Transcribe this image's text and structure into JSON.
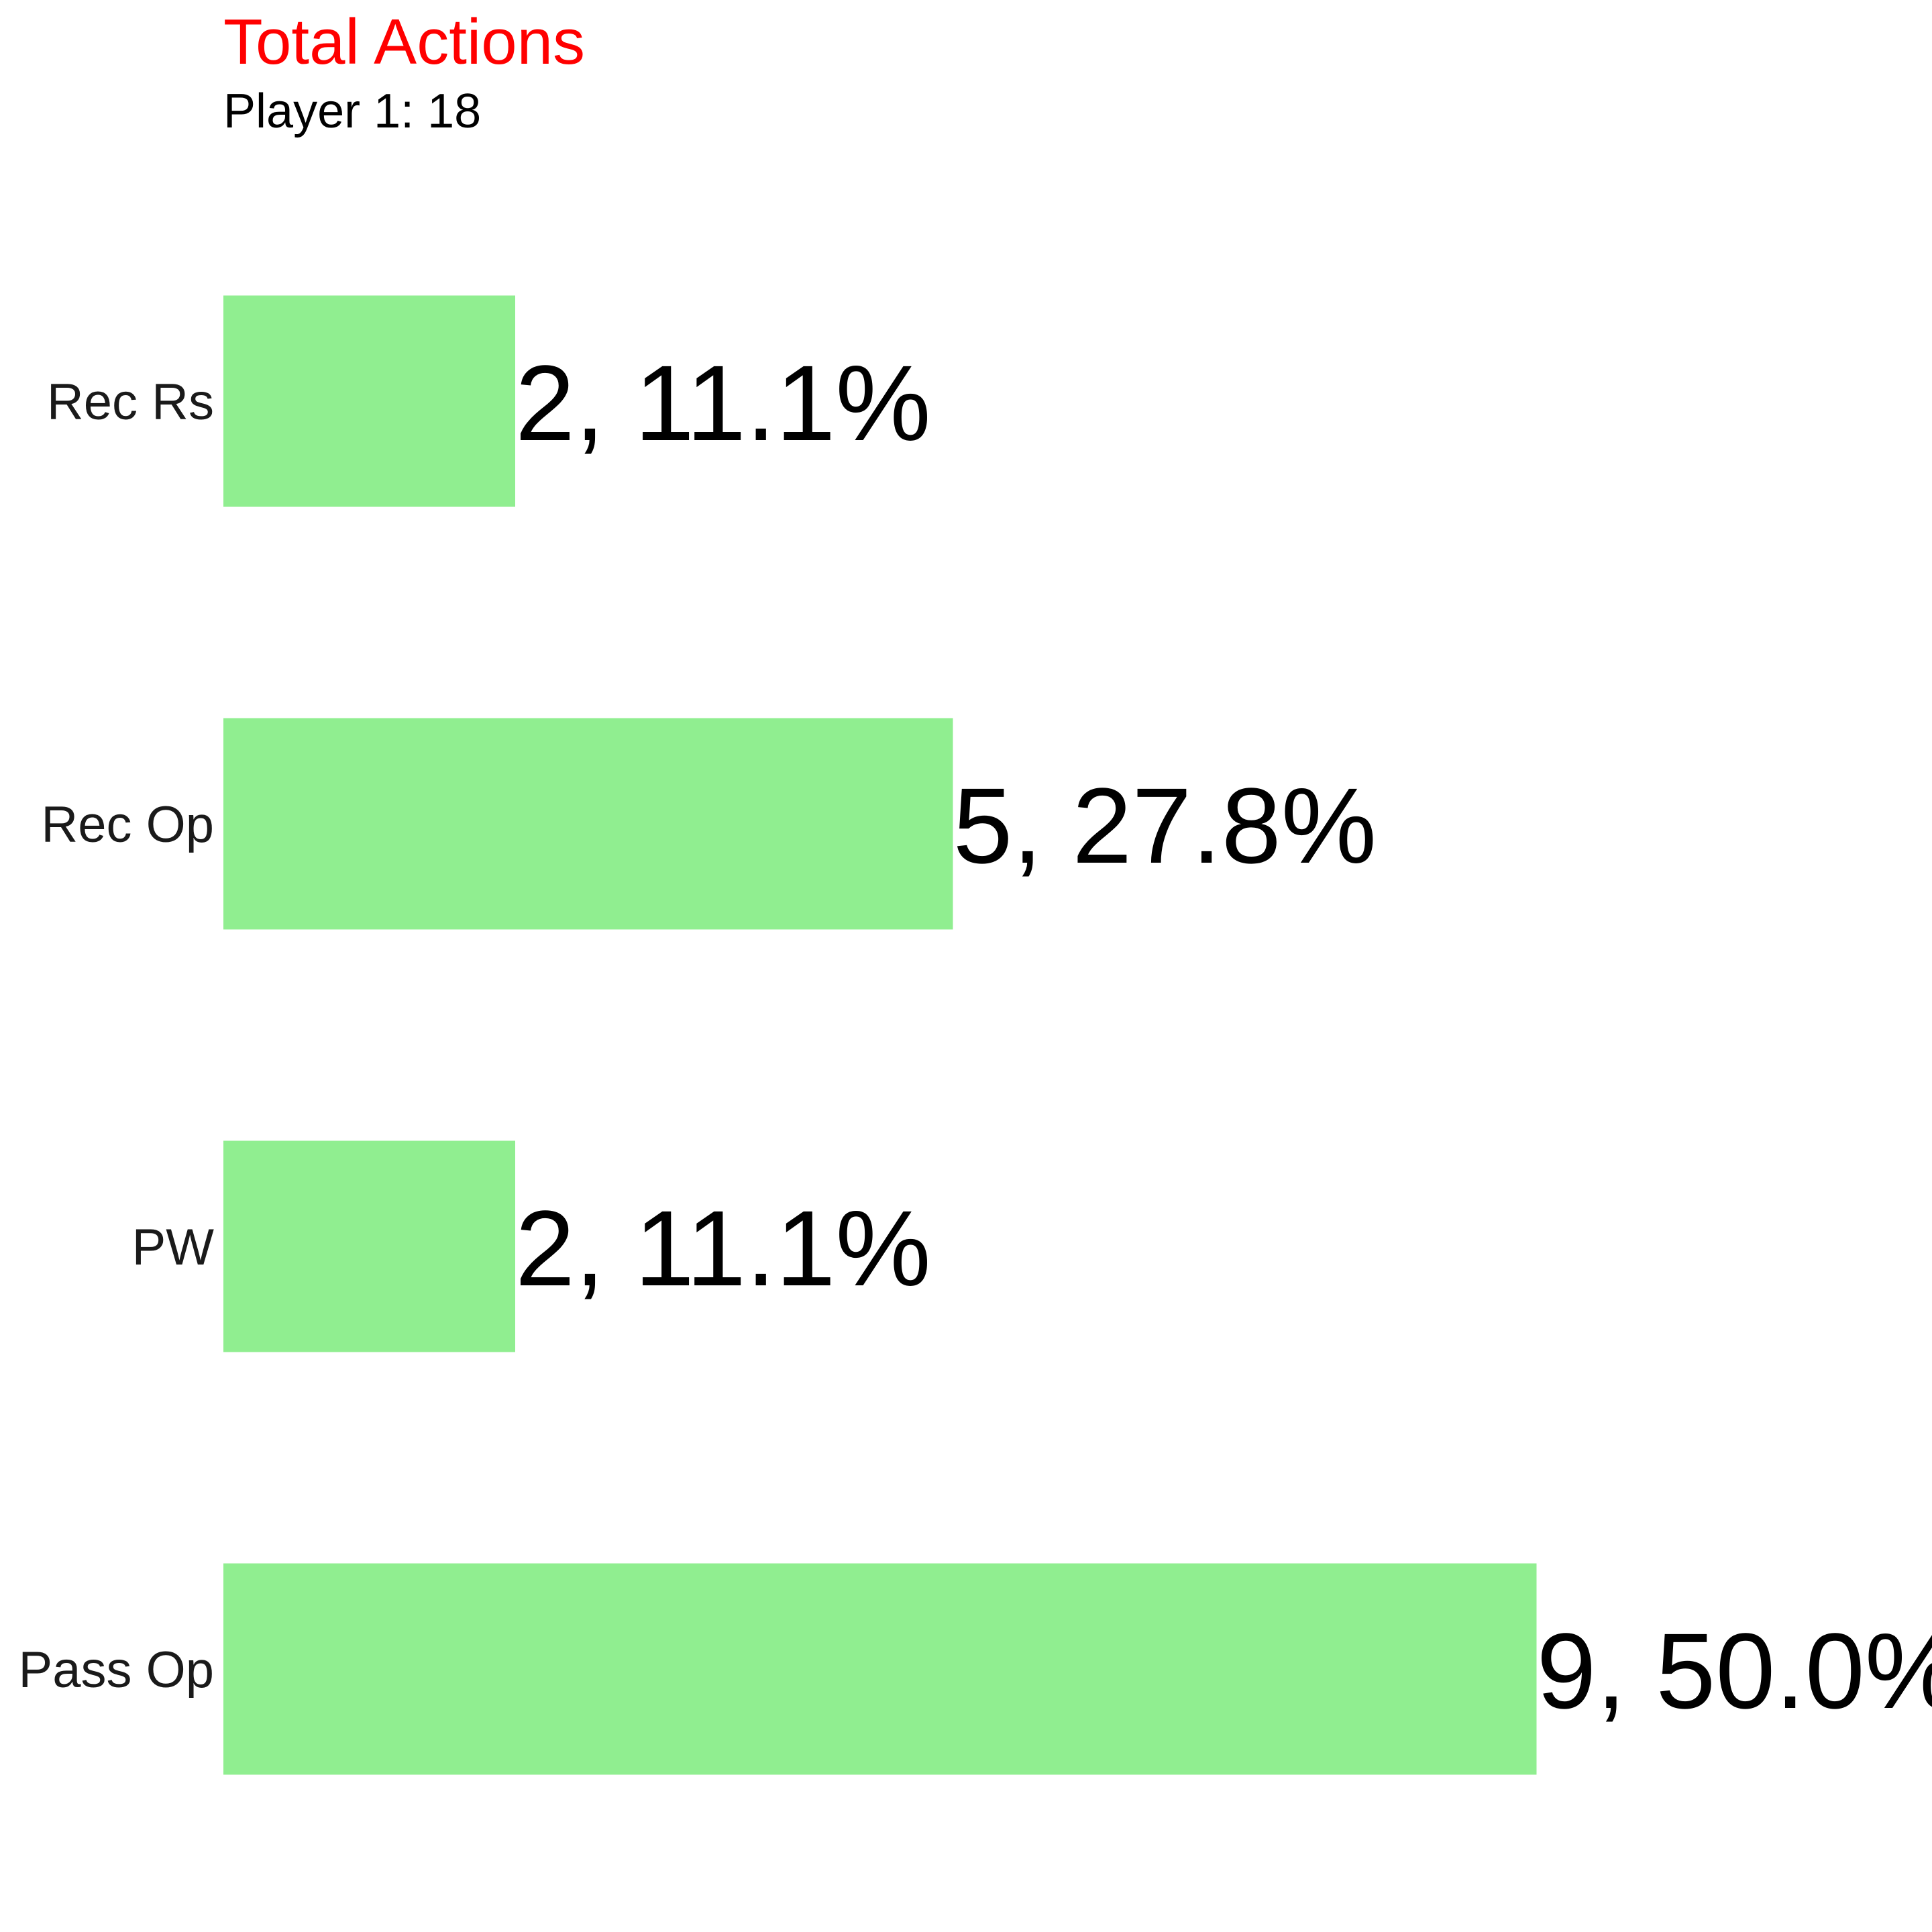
{
  "chart_data": {
    "type": "bar",
    "orientation": "horizontal",
    "title": "Total Actions",
    "subtitle": "Player 1: 18",
    "categories": [
      "Rec Rs",
      "Rec Op",
      "PW",
      "Pass Op"
    ],
    "values": [
      2,
      5,
      2,
      9
    ],
    "data_labels": [
      "2, 11.1%",
      "5, 27.8%",
      "2, 11.1%",
      "9, 50.0%"
    ],
    "xlim": [
      0,
      9
    ],
    "grid": false,
    "legend": "none"
  },
  "colors": {
    "bar": "#90EE90",
    "title": "#ff0000",
    "subtitle": "#000000"
  }
}
